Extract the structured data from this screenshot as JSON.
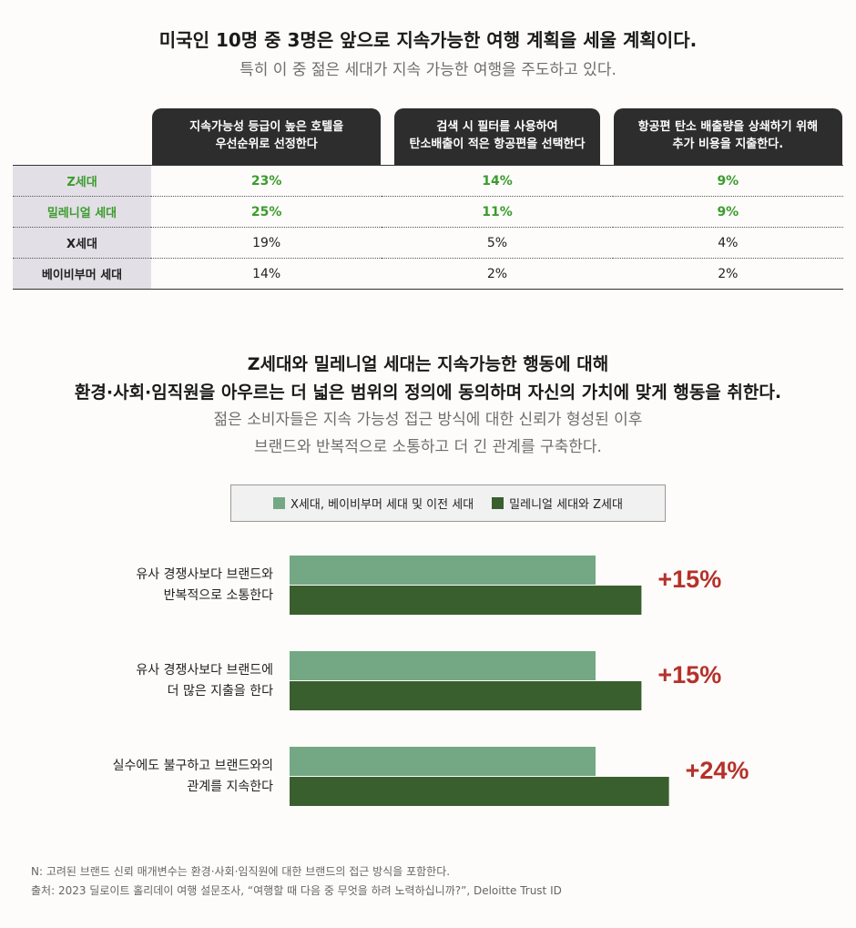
{
  "header": {
    "title": "미국인 10명 중 3명은 앞으로 지속가능한 여행 계획을 세울 계획이다.",
    "subtitle": "특히 이 중 젊은 세대가 지속 가능한 여행을 주도하고 있다."
  },
  "table": {
    "columns": [
      [
        "지속가능성 등급이 높은 호텔을",
        "우선순위로 선정한다"
      ],
      [
        "검색 시 필터를 사용하여",
        "탄소배출이 적은 항공편을 선택한다"
      ],
      [
        "항공편 탄소 배출량을 상쇄하기 위해",
        "추가 비용을 지출한다."
      ]
    ],
    "rows": [
      {
        "label": "Z세대",
        "values": [
          "23%",
          "14%",
          "9%"
        ],
        "highlight": true
      },
      {
        "label": "밀레니얼 세대",
        "values": [
          "25%",
          "11%",
          "9%"
        ],
        "highlight": true
      },
      {
        "label": "X세대",
        "values": [
          "19%",
          "5%",
          "4%"
        ],
        "highlight": false
      },
      {
        "label": "베이비부머 세대",
        "values": [
          "14%",
          "2%",
          "2%"
        ],
        "highlight": false
      }
    ]
  },
  "section2": {
    "title_lines": [
      "Z세대와 밀레니얼 세대는 지속가능한 행동에 대해",
      "환경·사회·임직원을 아우르는 더 넓은 범위의 정의에 동의하며 자신의 가치에 맞게 행동을 취한다."
    ],
    "subtitle_lines": [
      "젊은 소비자들은 지속 가능성 접근 방식에 대한 신뢰가 형성된 이후",
      "브랜드와 반복적으로 소통하고 더 긴 관계를 구축한다."
    ]
  },
  "colors": {
    "light": "#74a884",
    "dark": "#3a5f2f",
    "accent_red": "#b5312a",
    "highlight_green": "#3b9c2d"
  },
  "chart_data": {
    "type": "bar",
    "orientation": "horizontal",
    "categories": [
      [
        "유사 경쟁사보다 브랜드와",
        "반복적으로 소통한다"
      ],
      [
        "유사 경쟁사보다 브랜드에",
        "더 많은 지출을 한다"
      ],
      [
        "실수에도 불구하고 브랜드와의",
        "관계를 지속한다"
      ]
    ],
    "series": [
      {
        "name": "X세대, 베이비부머 세대 및 이전 세대",
        "values": [
          100,
          100,
          100
        ]
      },
      {
        "name": "밀레니얼 세대와 Z세대",
        "values": [
          115,
          115,
          124
        ]
      }
    ],
    "annotations": [
      "+15%",
      "+15%",
      "+24%"
    ],
    "legend_position": "top-center"
  },
  "footer": {
    "note": "N:  고려된 브랜드 신뢰 매개변수는 환경·사회·임직원에 대한 브랜드의 접근 방식을 포함한다.",
    "source": "출처: 2023 딜로이트 홀리데이 여행 설문조사, “여행할 때 다음 중 무엇을 하려 노력하십니까?”, Deloitte Trust ID"
  }
}
